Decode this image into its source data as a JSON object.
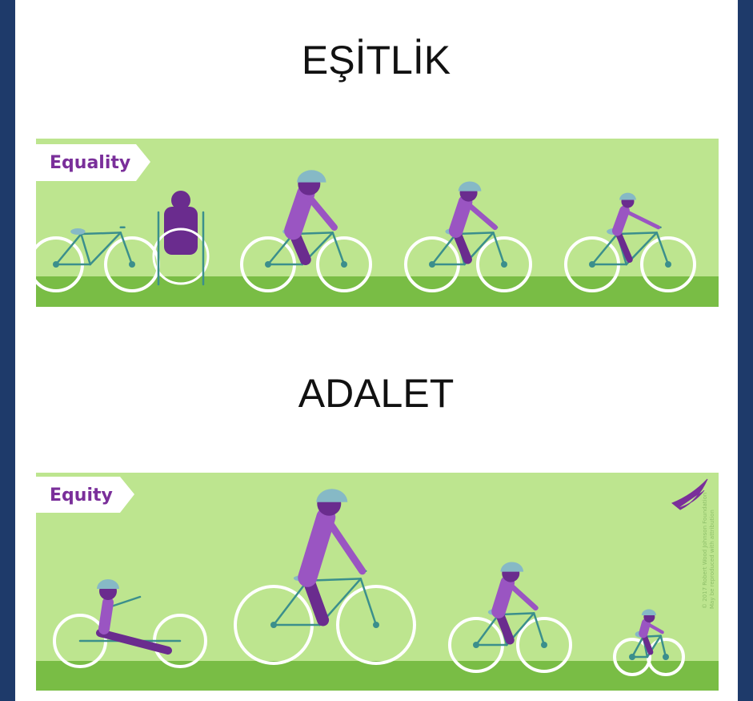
{
  "sections": [
    {
      "title": "EŞİTLİK",
      "label": "Equality"
    },
    {
      "title": "ADALET",
      "label": "Equity"
    }
  ],
  "credit": [
    "© 2017 Robert Wood Johnson Foundation",
    "May be reproduced with attribution"
  ]
}
